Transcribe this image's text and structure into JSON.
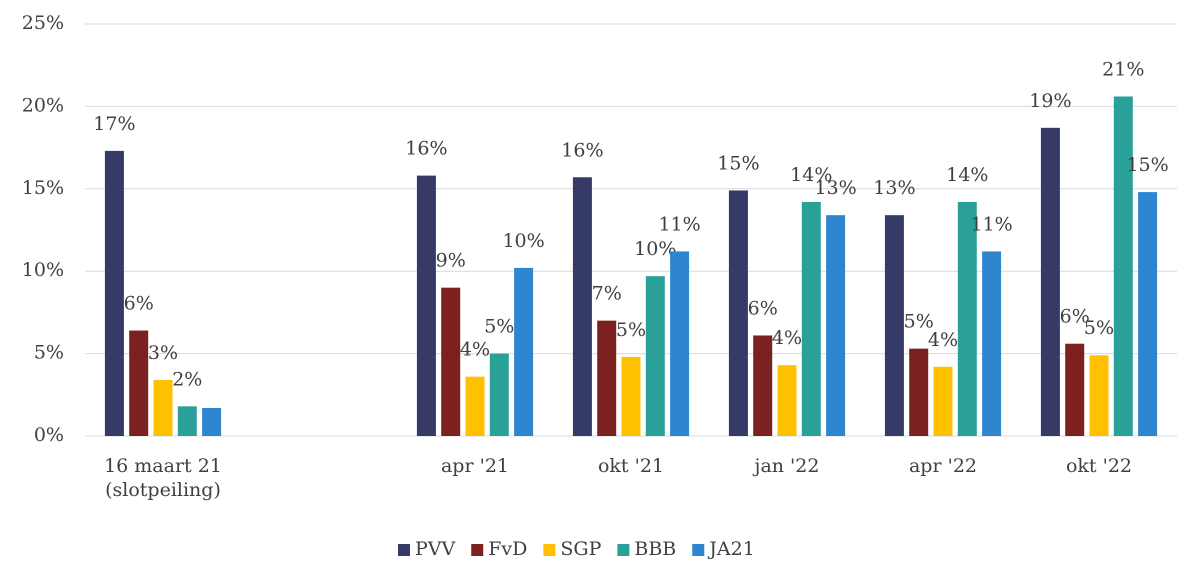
{
  "chart_data": {
    "type": "bar",
    "categories": [
      "16 maart 21 (slotpeiling)",
      null,
      "apr '21",
      "okt '21",
      "jan '22",
      "apr '22",
      "okt '22"
    ],
    "series": [
      {
        "name": "PVV",
        "color": "#363a66",
        "values": [
          17.3,
          null,
          15.8,
          15.7,
          14.9,
          13.4,
          18.7
        ],
        "value_labels": [
          "17%",
          null,
          "16%",
          "16%",
          "15%",
          "13%",
          "19%"
        ]
      },
      {
        "name": "FvD",
        "color": "#7b2220",
        "values": [
          6.4,
          null,
          9.0,
          7.0,
          6.1,
          5.3,
          5.6
        ],
        "value_labels": [
          "6%",
          null,
          "9%",
          "7%",
          "6%",
          "5%",
          "6%"
        ]
      },
      {
        "name": "SGP",
        "color": "#ffc000",
        "values": [
          3.4,
          null,
          3.6,
          4.8,
          4.3,
          4.2,
          4.9
        ],
        "value_labels": [
          "3%",
          null,
          "4%",
          "5%",
          "4%",
          "4%",
          "5%"
        ]
      },
      {
        "name": "BBB",
        "color": "#2aa198",
        "values": [
          1.8,
          null,
          5.0,
          9.7,
          14.2,
          14.2,
          20.6
        ],
        "value_labels": [
          "2%",
          null,
          "5%",
          "10%",
          "14%",
          "14%",
          "21%"
        ]
      },
      {
        "name": "JA21",
        "color": "#2e86d1",
        "values": [
          1.7,
          null,
          10.2,
          11.2,
          13.4,
          11.2,
          14.8
        ],
        "value_labels": [
          null,
          null,
          "10%",
          "11%",
          "13%",
          "11%",
          "15%"
        ]
      }
    ],
    "ylim": [
      0,
      25
    ],
    "yticks": [
      {
        "value": 0,
        "label": "0%"
      },
      {
        "value": 5,
        "label": "5%"
      },
      {
        "value": 10,
        "label": "10%"
      },
      {
        "value": 15,
        "label": "15%"
      },
      {
        "value": 20,
        "label": "20%"
      },
      {
        "value": 25,
        "label": "25%"
      }
    ],
    "grid": true,
    "legend": "bottom"
  }
}
